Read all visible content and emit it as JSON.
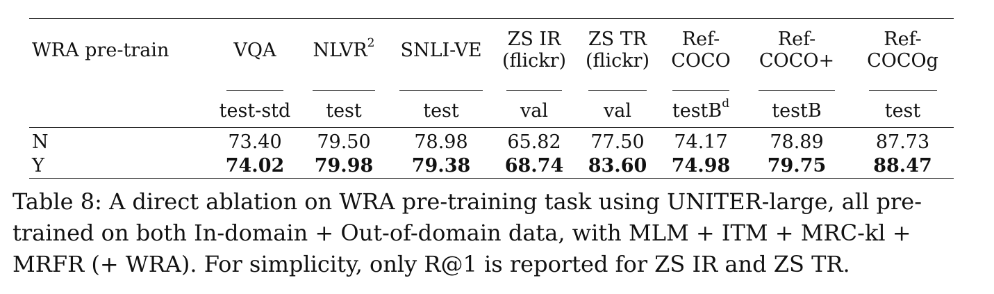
{
  "table": {
    "header": {
      "row_label": "WRA pre-train",
      "columns": [
        {
          "name_lines": [
            "VQA"
          ],
          "split": "test-std"
        },
        {
          "name_lines": [
            "NLVR"
          ],
          "name_sup": "2",
          "split": "test"
        },
        {
          "name_lines": [
            "SNLI-VE"
          ],
          "split": "test"
        },
        {
          "name_lines": [
            "ZS IR",
            "(flickr)"
          ],
          "split": "val"
        },
        {
          "name_lines": [
            "ZS TR",
            "(flickr)"
          ],
          "split": "val"
        },
        {
          "name_lines": [
            "Ref-",
            "COCO"
          ],
          "split": "testB",
          "split_sup": "d"
        },
        {
          "name_lines": [
            "Ref-",
            "COCO+"
          ],
          "split": "testB"
        },
        {
          "name_lines": [
            "Ref-",
            "COCOg"
          ],
          "split": "test"
        }
      ]
    },
    "rows": [
      {
        "label": "N",
        "values": [
          "73.40",
          "79.50",
          "78.98",
          "65.82",
          "77.50",
          "74.17",
          "78.89",
          "87.73"
        ],
        "bold": false
      },
      {
        "label": "Y",
        "values": [
          "74.02",
          "79.98",
          "79.38",
          "68.74",
          "83.60",
          "74.98",
          "79.75",
          "88.47"
        ],
        "bold": true
      }
    ]
  },
  "caption": {
    "lines": [
      "Table 8: A direct ablation on WRA pre-training task using UNITER-large, all pre-",
      "trained on both In-domain + Out-of-domain data, with MLM + ITM + MRC-kl +",
      "MRFR (+ WRA). For simplicity, only R@1 is reported for ZS IR and ZS TR."
    ]
  }
}
